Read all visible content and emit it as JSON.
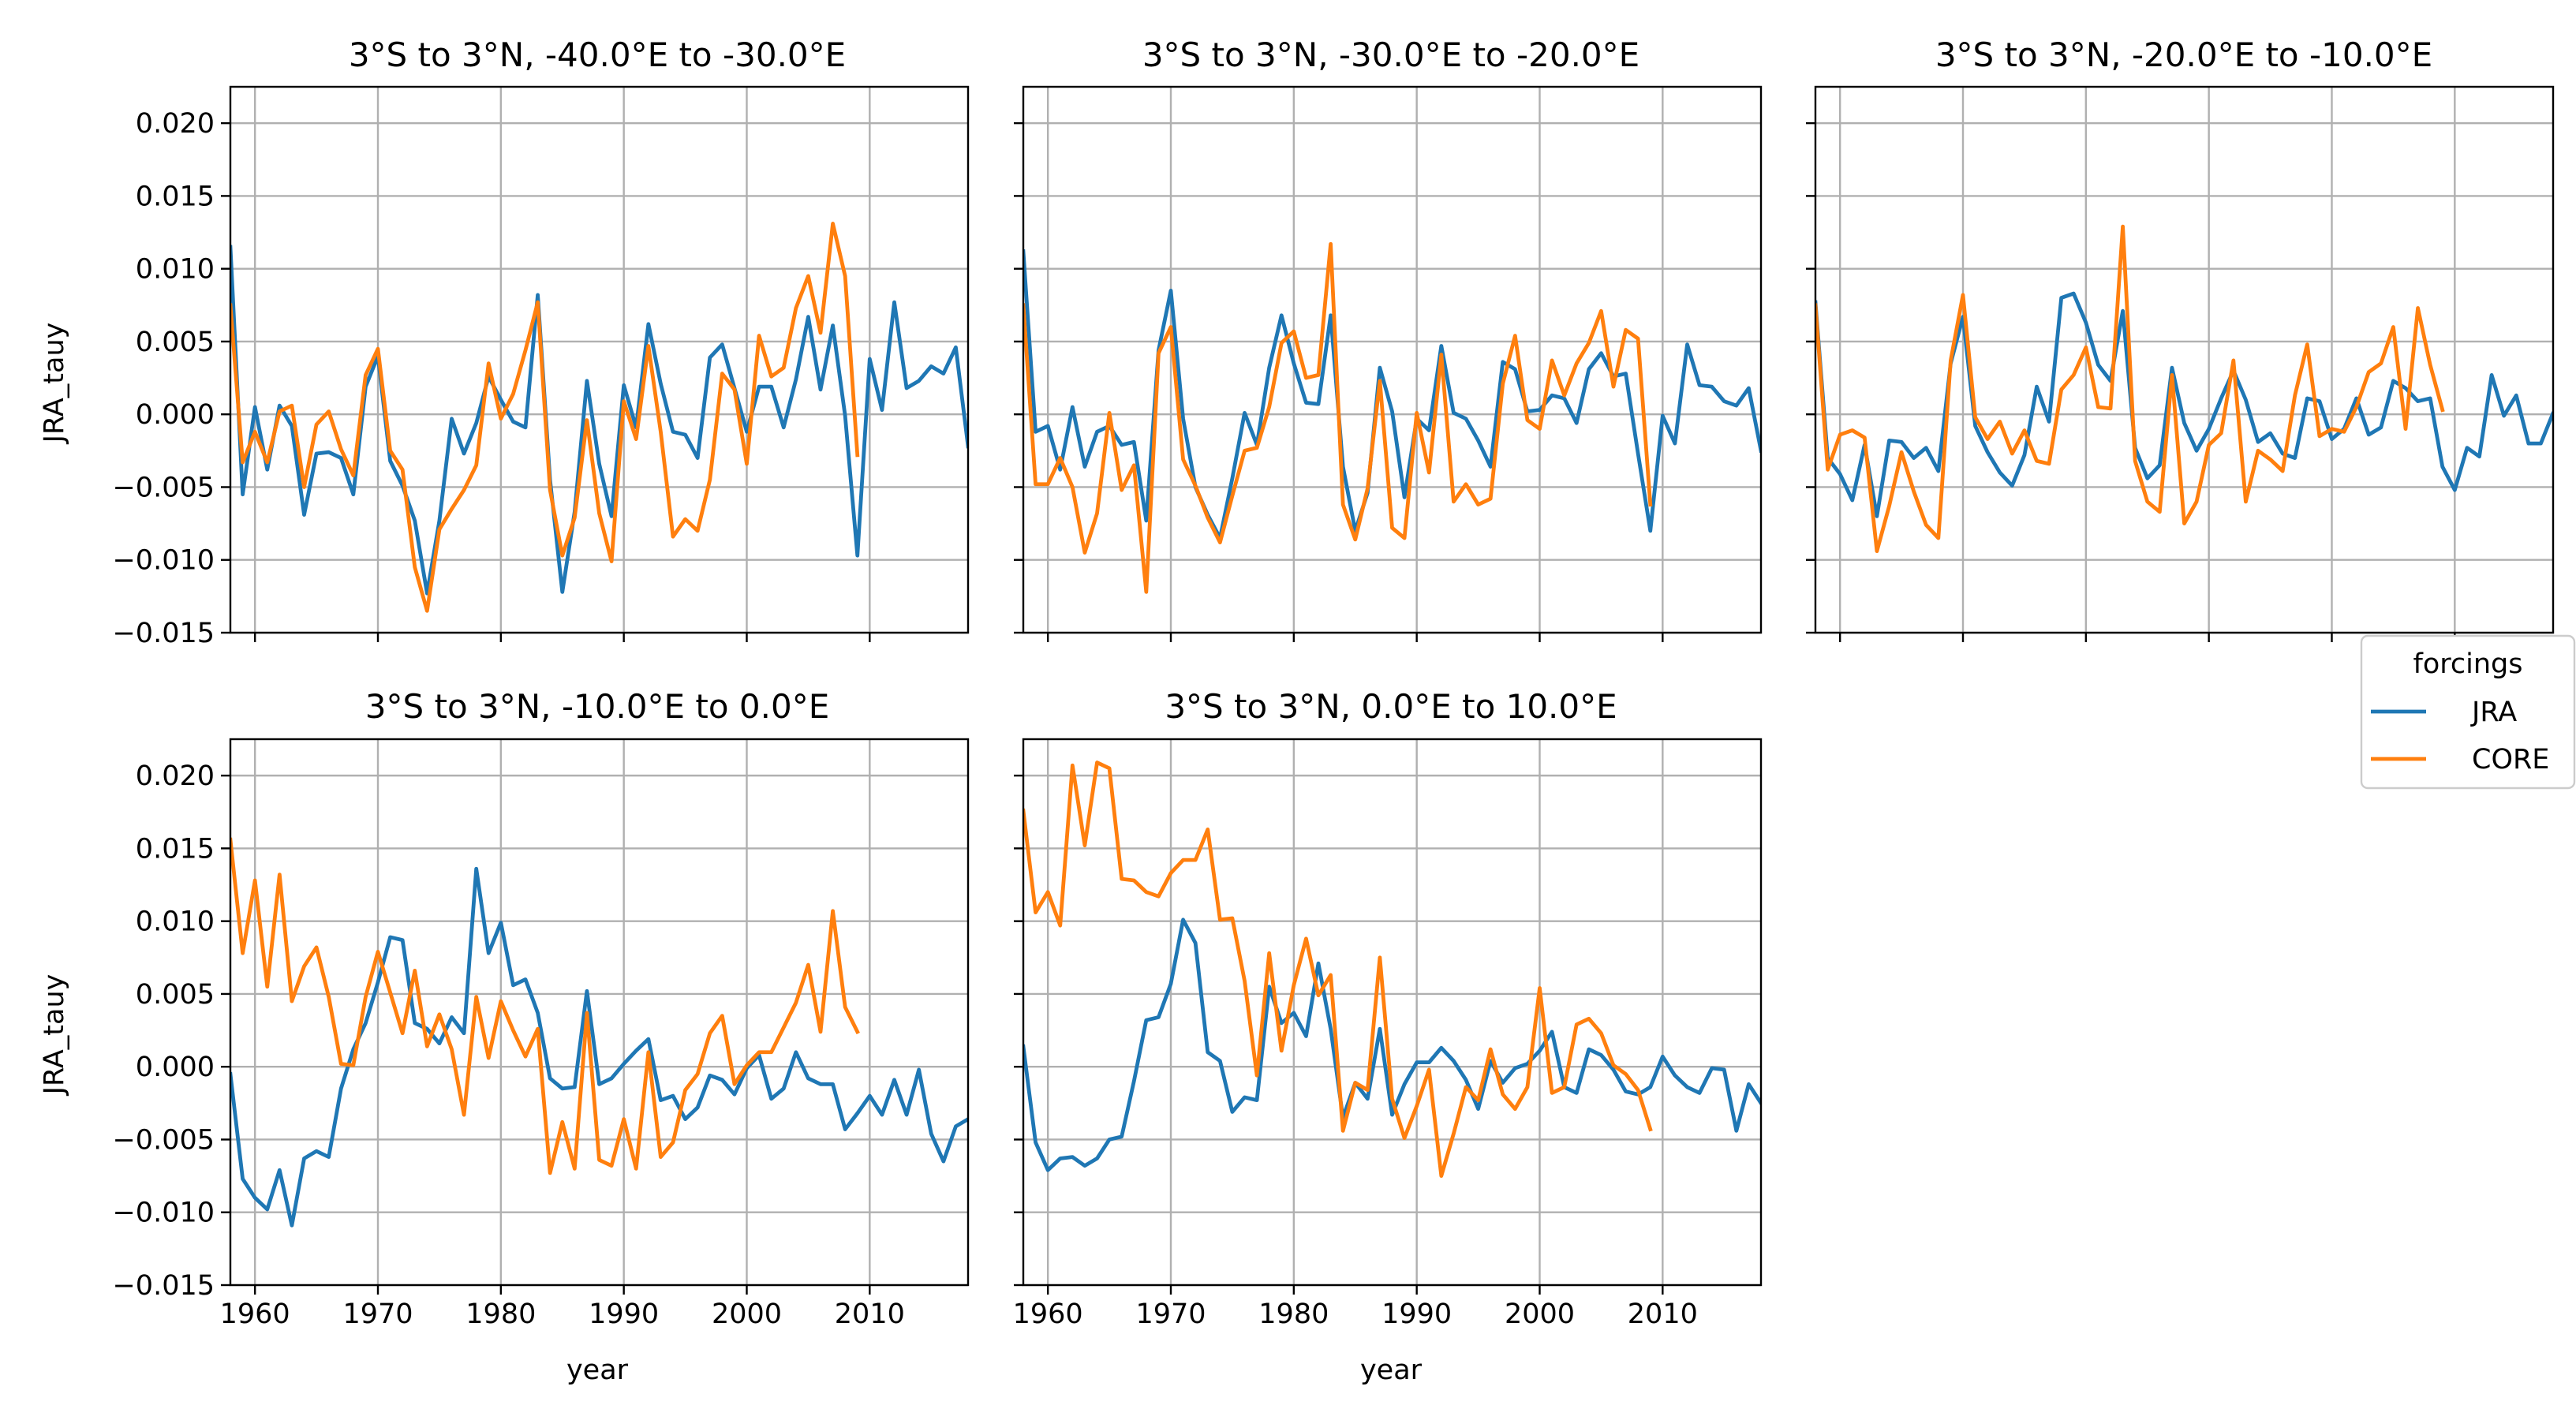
{
  "chart_data": {
    "type": "line",
    "x_label": "year",
    "y_label": "JRA_tauy",
    "xlim": [
      1958,
      2018
    ],
    "ylim": [
      -0.015,
      0.0225
    ],
    "xticks": [
      1960,
      1970,
      1980,
      1990,
      2000,
      2010
    ],
    "yticks": [
      -0.015,
      -0.01,
      -0.005,
      0.0,
      0.005,
      0.01,
      0.015,
      0.02
    ],
    "grid": true,
    "legend": {
      "title": "forcings",
      "placement": "right",
      "entries": [
        {
          "name": "JRA",
          "color": "#1f77b4"
        },
        {
          "name": "CORE",
          "color": "#ff7f0e"
        }
      ]
    },
    "panels": [
      {
        "title": "3°S to 3°N, -40.0°E to -30.0°E",
        "series": [
          {
            "name": "JRA",
            "x_start": 1958,
            "values": [
              0.0115,
              -0.0055,
              0.0005,
              -0.0038,
              0.0006,
              -0.0008,
              -0.0069,
              -0.0027,
              -0.0026,
              -0.003,
              -0.0055,
              0.0019,
              0.004,
              -0.0032,
              -0.0049,
              -0.0073,
              -0.0123,
              -0.0073,
              -0.0003,
              -0.0027,
              -0.0006,
              0.0026,
              0.001,
              -0.0005,
              -0.0009,
              0.0082,
              -0.0045,
              -0.0122,
              -0.0067,
              0.0023,
              -0.0034,
              -0.007,
              0.002,
              -0.0009,
              0.0062,
              0.0021,
              -0.0012,
              -0.0014,
              -0.003,
              0.0039,
              0.0048,
              0.0018,
              -0.0012,
              0.0019,
              0.0019,
              -0.0009,
              0.0024,
              0.0067,
              0.0017,
              0.0061,
              -0.0001,
              -0.0097,
              0.0038,
              0.0003,
              0.0077,
              0.0018,
              0.0023,
              0.0033,
              0.0028,
              0.0046,
              -0.0022
            ]
          },
          {
            "name": "CORE",
            "x_start": 1958,
            "values": [
              0.0075,
              -0.0033,
              -0.0012,
              -0.0033,
              0.0002,
              0.0006,
              -0.005,
              -0.0007,
              0.0002,
              -0.0024,
              -0.0042,
              0.0027,
              0.0045,
              -0.0025,
              -0.0038,
              -0.0105,
              -0.0135,
              -0.0079,
              -0.0065,
              -0.0052,
              -0.0035,
              0.0035,
              -0.0003,
              0.0014,
              0.0044,
              0.0077,
              -0.0052,
              -0.0097,
              -0.0071,
              -0.0004,
              -0.0068,
              -0.0101,
              0.0009,
              -0.0017,
              0.0047,
              -0.0012,
              -0.0084,
              -0.0072,
              -0.008,
              -0.0045,
              0.0028,
              0.0017,
              -0.0034,
              0.0054,
              0.0026,
              0.0032,
              0.0073,
              0.0095,
              0.0056,
              0.0131,
              0.0095,
              -0.0028
            ]
          }
        ]
      },
      {
        "title": "3°S to 3°N, -30.0°E to -20.0°E",
        "series": [
          {
            "name": "JRA",
            "x_start": 1958,
            "values": [
              0.0112,
              -0.0012,
              -0.0008,
              -0.0038,
              0.0005,
              -0.0036,
              -0.0012,
              -0.0008,
              -0.0021,
              -0.0019,
              -0.0073,
              0.0044,
              0.0085,
              -0.0003,
              -0.005,
              -0.0069,
              -0.0085,
              -0.0044,
              0.0001,
              -0.0021,
              0.0032,
              0.0068,
              0.0035,
              0.0008,
              0.0007,
              0.0068,
              -0.0036,
              -0.008,
              -0.0054,
              0.0032,
              0.0002,
              -0.0057,
              -0.0003,
              -0.0011,
              0.0047,
              0.0001,
              -0.0003,
              -0.0018,
              -0.0036,
              0.0036,
              0.0031,
              0.0002,
              0.0003,
              0.0013,
              0.0011,
              -0.0006,
              0.0031,
              0.0042,
              0.0026,
              0.0028,
              -0.0027,
              -0.008,
              -0.0001,
              -0.002,
              0.0048,
              0.002,
              0.0019,
              0.0009,
              0.0006,
              0.0018,
              -0.0025
            ]
          },
          {
            "name": "CORE",
            "x_start": 1958,
            "values": [
              0.0075,
              -0.0048,
              -0.0048,
              -0.003,
              -0.005,
              -0.0095,
              -0.0068,
              0.0001,
              -0.0052,
              -0.0035,
              -0.0122,
              0.0042,
              0.006,
              -0.0031,
              -0.0049,
              -0.0071,
              -0.0088,
              -0.0056,
              -0.0025,
              -0.0023,
              0.0005,
              0.0049,
              0.0057,
              0.0025,
              0.0027,
              0.0117,
              -0.0062,
              -0.0086,
              -0.0051,
              0.0023,
              -0.0078,
              -0.0085,
              0.0001,
              -0.004,
              0.0041,
              -0.006,
              -0.0048,
              -0.0062,
              -0.0058,
              0.0021,
              0.0054,
              -0.0004,
              -0.001,
              0.0037,
              0.0013,
              0.0035,
              0.0049,
              0.0071,
              0.0019,
              0.0058,
              0.0052,
              -0.0062
            ]
          }
        ]
      },
      {
        "title": "3°S to 3°N, -20.0°E to -10.0°E",
        "series": [
          {
            "name": "JRA",
            "x_start": 1958,
            "values": [
              0.0077,
              -0.003,
              -0.0041,
              -0.0059,
              -0.0021,
              -0.007,
              -0.0018,
              -0.0019,
              -0.003,
              -0.0023,
              -0.0039,
              0.0035,
              0.0067,
              -0.0008,
              -0.0026,
              -0.004,
              -0.0049,
              -0.0028,
              0.0019,
              -0.0005,
              0.008,
              0.0083,
              0.0063,
              0.0034,
              0.0023,
              0.0071,
              -0.0023,
              -0.0044,
              -0.0035,
              0.0032,
              -0.0006,
              -0.0025,
              -0.001,
              0.0011,
              0.003,
              0.001,
              -0.0019,
              -0.0013,
              -0.0027,
              -0.003,
              0.0011,
              0.0009,
              -0.0017,
              -0.001,
              0.0011,
              -0.0014,
              -0.0009,
              0.0023,
              0.0018,
              0.0009,
              0.0011,
              -0.0036,
              -0.0052,
              -0.0023,
              -0.0029,
              0.0027,
              -0.0001,
              0.0013,
              -0.002,
              -0.002,
              0.0001,
              -0.0029
            ]
          },
          {
            "name": "CORE",
            "x_start": 1958,
            "values": [
              0.0075,
              -0.0038,
              -0.0014,
              -0.0011,
              -0.0016,
              -0.0094,
              -0.0063,
              -0.0026,
              -0.0053,
              -0.0076,
              -0.0085,
              0.0037,
              0.0082,
              -0.0002,
              -0.0017,
              -0.0005,
              -0.0027,
              -0.0011,
              -0.0032,
              -0.0034,
              0.0017,
              0.0027,
              0.0046,
              0.0005,
              0.0004,
              0.0129,
              -0.0032,
              -0.006,
              -0.0067,
              0.0027,
              -0.0075,
              -0.006,
              -0.0021,
              -0.0013,
              0.0037,
              -0.006,
              -0.0025,
              -0.0031,
              -0.0039,
              0.0013,
              0.0048,
              -0.0015,
              -0.001,
              -0.0012,
              0.0005,
              0.0029,
              0.0035,
              0.006,
              -0.001,
              0.0073,
              0.0034,
              0.0003
            ]
          }
        ]
      },
      {
        "title": "3°S to 3°N, -10.0°E to 0.0°E",
        "series": [
          {
            "name": "JRA",
            "x_start": 1958,
            "values": [
              -0.0005,
              -0.0077,
              -0.009,
              -0.0098,
              -0.0071,
              -0.0109,
              -0.0063,
              -0.0058,
              -0.0062,
              -0.0015,
              0.0012,
              0.003,
              0.0058,
              0.0089,
              0.0087,
              0.003,
              0.0026,
              0.0016,
              0.0034,
              0.0023,
              0.0136,
              0.0078,
              0.0099,
              0.0056,
              0.006,
              0.0037,
              -0.0008,
              -0.0015,
              -0.0014,
              0.0052,
              -0.0012,
              -0.0008,
              0.0002,
              0.0011,
              0.0019,
              -0.0023,
              -0.002,
              -0.0036,
              -0.0028,
              -0.0006,
              -0.0009,
              -0.0019,
              -0.0001,
              0.0008,
              -0.0022,
              -0.0015,
              0.001,
              -0.0008,
              -0.0012,
              -0.0012,
              -0.0043,
              -0.0032,
              -0.002,
              -0.0033,
              -0.0009,
              -0.0033,
              -0.0002,
              -0.0046,
              -0.0065,
              -0.0041,
              -0.0036
            ]
          },
          {
            "name": "CORE",
            "x_start": 1958,
            "values": [
              0.0156,
              0.0078,
              0.0128,
              0.0055,
              0.0132,
              0.0045,
              0.0069,
              0.0082,
              0.0048,
              0.0002,
              0.0001,
              0.0048,
              0.0079,
              0.0051,
              0.0023,
              0.0066,
              0.0014,
              0.0036,
              0.0012,
              -0.0033,
              0.0048,
              0.0006,
              0.0045,
              0.0025,
              0.0007,
              0.0026,
              -0.0073,
              -0.0038,
              -0.007,
              0.0037,
              -0.0064,
              -0.0068,
              -0.0036,
              -0.007,
              0.001,
              -0.0062,
              -0.0052,
              -0.0016,
              -0.0005,
              0.0023,
              0.0035,
              -0.0012,
              0.0001,
              0.001,
              0.001,
              0.0027,
              0.0044,
              0.007,
              0.0024,
              0.0107,
              0.0041,
              0.0024
            ]
          }
        ]
      },
      {
        "title": "3°S to 3°N, 0.0°E to 10.0°E",
        "series": [
          {
            "name": "JRA",
            "x_start": 1958,
            "values": [
              0.0014,
              -0.0052,
              -0.0071,
              -0.0063,
              -0.0062,
              -0.0068,
              -0.0063,
              -0.005,
              -0.0048,
              -0.001,
              0.0032,
              0.0034,
              0.0057,
              0.0101,
              0.0085,
              0.001,
              0.0004,
              -0.0031,
              -0.0021,
              -0.0023,
              0.0055,
              0.003,
              0.0037,
              0.0021,
              0.0071,
              0.0026,
              -0.0035,
              -0.0011,
              -0.0022,
              0.0026,
              -0.0033,
              -0.0012,
              0.0003,
              0.0003,
              0.0013,
              0.0004,
              -0.0009,
              -0.0029,
              0.0004,
              -0.0011,
              -0.0001,
              0.0002,
              0.0011,
              0.0024,
              -0.0014,
              -0.0018,
              0.0012,
              0.0008,
              -0.0002,
              -0.0017,
              -0.0019,
              -0.0014,
              0.0007,
              -0.0006,
              -0.0014,
              -0.0018,
              -0.0001,
              -0.0002,
              -0.0044,
              -0.0012,
              -0.0025
            ]
          },
          {
            "name": "CORE",
            "x_start": 1958,
            "values": [
              0.0176,
              0.0106,
              0.012,
              0.0097,
              0.0207,
              0.0152,
              0.0209,
              0.0205,
              0.0129,
              0.0128,
              0.012,
              0.0117,
              0.0133,
              0.0142,
              0.0142,
              0.0163,
              0.0101,
              0.0102,
              0.0059,
              -0.0006,
              0.0078,
              0.0011,
              0.0056,
              0.0088,
              0.0049,
              0.0063,
              -0.0044,
              -0.0011,
              -0.0016,
              0.0075,
              -0.0022,
              -0.0049,
              -0.0027,
              -0.0002,
              -0.0075,
              -0.0046,
              -0.0014,
              -0.0023,
              0.0012,
              -0.0019,
              -0.0029,
              -0.0014,
              0.0054,
              -0.0018,
              -0.0014,
              0.0029,
              0.0033,
              0.0023,
              0.0001,
              -0.0005,
              -0.0016,
              -0.0043
            ]
          }
        ]
      }
    ]
  }
}
